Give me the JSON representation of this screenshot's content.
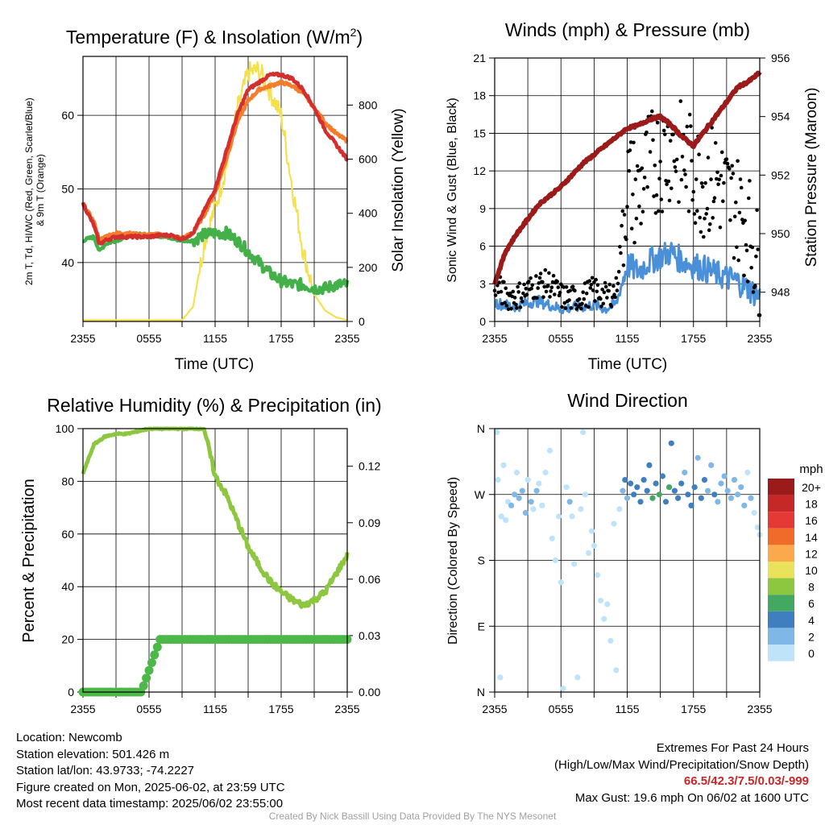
{
  "chart_data": [
    {
      "type": "line",
      "title": "Temperature (F) & Insolation (W/m²)",
      "title_main": "Temperature (F) & Insolation (W/m",
      "title_sup": "2",
      "title_end": ")",
      "xlabel": "Time (UTC)",
      "ylabel_line1": "2m T, Td, HI/WC (Red, Green, Scarlet/Blue)",
      "ylabel_line2": "& 9m T (Orange)",
      "ylabel_right": "Solar Insolation (Yellow)",
      "x_ticks": [
        "2355",
        "0555",
        "1155",
        "1755",
        "2355"
      ],
      "ylim": [
        32,
        68
      ],
      "y_ticks": [
        40,
        50,
        60
      ],
      "ylim_right": [
        0,
        980
      ],
      "y_ticks_right": [
        0,
        200,
        400,
        600,
        800
      ],
      "hours": [
        0,
        1,
        1.5,
        2,
        3,
        4,
        5,
        6,
        7,
        8,
        9,
        10,
        11,
        12,
        13,
        14,
        15,
        16,
        17,
        18,
        19,
        20,
        21,
        22,
        23,
        24
      ],
      "series": [
        {
          "name": "2m T",
          "color": "#d32f2f",
          "values": [
            48,
            45,
            42.5,
            43,
            43.5,
            43.5,
            43.5,
            43.5,
            43.7,
            43.7,
            43.2,
            44,
            47,
            50,
            55,
            60,
            63.5,
            64.5,
            65.5,
            65.5,
            65,
            63.5,
            61,
            58,
            56,
            54
          ]
        },
        {
          "name": "9m T",
          "color": "#f57c2a",
          "values": [
            48,
            45.5,
            43,
            43.5,
            44,
            44,
            43.8,
            43.8,
            43.8,
            43.6,
            43.3,
            44,
            46.5,
            49.5,
            54,
            59,
            62,
            63.5,
            64,
            64.5,
            64,
            63,
            61,
            59,
            57.5,
            56.5
          ]
        },
        {
          "name": "Td",
          "color": "#43b04a",
          "values": [
            43,
            43.5,
            41.5,
            42.5,
            43,
            43.5,
            43.8,
            43.8,
            43.6,
            43.3,
            43,
            43,
            43.8,
            44,
            44,
            43,
            41.5,
            40,
            38.5,
            37.5,
            37,
            37,
            36.5,
            36.5,
            37,
            37
          ]
        },
        {
          "name": "Solar Insolation",
          "color": "#f5e050",
          "axis": "right",
          "values": [
            5,
            5,
            5,
            5,
            5,
            5,
            5,
            5,
            5,
            5,
            5,
            55,
            290,
            420,
            570,
            780,
            920,
            930,
            850,
            760,
            500,
            260,
            100,
            40,
            15,
            5
          ]
        }
      ]
    },
    {
      "type": "line",
      "title": "Winds (mph) & Pressure (mb)",
      "xlabel": "Time (UTC)",
      "ylabel": "Sonic Wind & Gust (Blue, Black)",
      "ylabel_right": "Station Pressure (Maroon)",
      "x_ticks": [
        "2355",
        "0555",
        "1155",
        "1755",
        "2355"
      ],
      "ylim": [
        0,
        21
      ],
      "y_ticks": [
        0,
        3,
        6,
        9,
        12,
        15,
        18,
        21
      ],
      "ylim_right": [
        947.0,
        956.0
      ],
      "y_ticks_right": [
        948,
        950,
        952,
        954,
        956
      ],
      "hours": [
        0,
        1,
        2,
        3,
        4,
        5,
        6,
        7,
        8,
        9,
        10,
        11,
        12,
        13,
        14,
        15,
        16,
        17,
        18,
        19,
        20,
        21,
        22,
        23,
        24
      ],
      "series": [
        {
          "name": "Sonic Wind",
          "color": "#4a90d9",
          "values": [
            1.5,
            1.3,
            1.2,
            1.5,
            1.6,
            1.3,
            1.0,
            1.1,
            1.2,
            1.3,
            1.0,
            1.4,
            4.5,
            4.0,
            4.8,
            5.2,
            5.5,
            4.8,
            4.5,
            4.2,
            3.8,
            3.5,
            3.2,
            2.6,
            2.0
          ]
        },
        {
          "name": "Gust",
          "color": "#000000",
          "values": [
            3.0,
            2.0,
            2.0,
            2.5,
            3.0,
            3.0,
            2.0,
            1.8,
            2.0,
            2.5,
            2.0,
            2.5,
            11.0,
            10.0,
            12.5,
            13.0,
            14.0,
            13.0,
            12.0,
            11.0,
            11.5,
            10.0,
            9.0,
            7.5,
            4.0
          ]
        },
        {
          "name": "Station Pressure",
          "color": "#9b1b1b",
          "axis": "right",
          "values": [
            948.3,
            949.4,
            950.0,
            950.5,
            951.0,
            951.3,
            951.6,
            952.0,
            952.4,
            952.7,
            953.0,
            953.3,
            953.6,
            953.7,
            953.9,
            954.0,
            953.7,
            953.3,
            953.0,
            953.5,
            954.0,
            954.5,
            955.0,
            955.2,
            955.5
          ]
        }
      ]
    },
    {
      "type": "line",
      "title": "Relative Humidity (%) & Precipitation (in)",
      "ylabel": "Percent & Precipitation",
      "x_ticks": [
        "2355",
        "0555",
        "1155",
        "1755",
        "2355"
      ],
      "ylim": [
        0,
        100
      ],
      "y_ticks": [
        0,
        20,
        40,
        60,
        80,
        100
      ],
      "ylim_right": [
        0,
        0.14
      ],
      "y_ticks_right": [
        "0.00",
        "0.03",
        "0.06",
        "0.09",
        "0.12"
      ],
      "hours": [
        0,
        1,
        2,
        3,
        4,
        5,
        6,
        7,
        8,
        9,
        10,
        11,
        12,
        13,
        14,
        15,
        16,
        17,
        18,
        19,
        20,
        21,
        22,
        23,
        24
      ],
      "series": [
        {
          "name": "Relative Humidity",
          "color": "#8dc63f",
          "values": [
            83,
            94,
            97,
            98,
            98,
            99,
            100,
            100,
            100,
            100,
            100,
            100,
            82,
            75,
            65,
            55,
            48,
            42,
            38,
            35,
            33,
            35,
            38,
            45,
            52
          ]
        },
        {
          "name": "Precipitation",
          "color": "#4cb848",
          "axis": "right",
          "values": [
            0,
            0,
            0,
            0,
            0,
            0,
            0.002,
            0.028,
            0.028,
            0.028,
            0.028,
            0.028,
            0.028,
            0.028,
            0.028,
            0.028,
            0.028,
            0.028,
            0.028,
            0.028,
            0.028,
            0.028,
            0.028,
            0.028,
            0.028
          ]
        }
      ]
    },
    {
      "type": "scatter",
      "title": "Wind Direction",
      "ylabel": "Direction (Colored By Speed)",
      "x_ticks": [
        "2355",
        "0555",
        "1155",
        "1755",
        "2355"
      ],
      "y_ticks": [
        "N",
        "E",
        "S",
        "W",
        "N"
      ],
      "ylim": [
        0,
        360
      ],
      "legend_title": "mph",
      "legend_labels": [
        "20+",
        "18",
        "16",
        "14",
        "12",
        "10",
        "8",
        "6",
        "4",
        "2",
        "0"
      ],
      "legend_colors": [
        "#9b1b1b",
        "#c62828",
        "#e53935",
        "#f06a2a",
        "#fba94c",
        "#e9e25a",
        "#8dc63f",
        "#43a862",
        "#3f7fc0",
        "#7fb8e6",
        "#bfe3f8"
      ],
      "points": [
        {
          "h": 0.2,
          "dir": 355,
          "mph": 0.8
        },
        {
          "h": 0.3,
          "dir": 290,
          "mph": 1.0
        },
        {
          "h": 0.5,
          "dir": 20,
          "mph": 0.5
        },
        {
          "h": 0.6,
          "dir": 240,
          "mph": 1.2
        },
        {
          "h": 0.8,
          "dir": 310,
          "mph": 1.0
        },
        {
          "h": 1.0,
          "dir": 235,
          "mph": 1.5
        },
        {
          "h": 1.2,
          "dir": 260,
          "mph": 1.5
        },
        {
          "h": 1.5,
          "dir": 255,
          "mph": 2.5
        },
        {
          "h": 1.8,
          "dir": 270,
          "mph": 2.0
        },
        {
          "h": 2.0,
          "dir": 300,
          "mph": 1.0
        },
        {
          "h": 2.2,
          "dir": 265,
          "mph": 3.0
        },
        {
          "h": 2.5,
          "dir": 275,
          "mph": 2.5
        },
        {
          "h": 2.8,
          "dir": 245,
          "mph": 2.0
        },
        {
          "h": 3.0,
          "dir": 290,
          "mph": 1.5
        },
        {
          "h": 3.3,
          "dir": 260,
          "mph": 2.5
        },
        {
          "h": 3.5,
          "dir": 250,
          "mph": 1.8
        },
        {
          "h": 3.8,
          "dir": 275,
          "mph": 2.8
        },
        {
          "h": 4.0,
          "dir": 285,
          "mph": 1.5
        },
        {
          "h": 4.3,
          "dir": 255,
          "mph": 1.2
        },
        {
          "h": 4.6,
          "dir": 300,
          "mph": 1.0
        },
        {
          "h": 5.0,
          "dir": 330,
          "mph": 0.8
        },
        {
          "h": 5.2,
          "dir": 210,
          "mph": 1.0
        },
        {
          "h": 5.5,
          "dir": 180,
          "mph": 1.2
        },
        {
          "h": 5.8,
          "dir": 240,
          "mph": 1.5
        },
        {
          "h": 6.0,
          "dir": 150,
          "mph": 0.8
        },
        {
          "h": 6.2,
          "dir": 5,
          "mph": 0.5
        },
        {
          "h": 6.5,
          "dir": 280,
          "mph": 1.2
        },
        {
          "h": 6.8,
          "dir": 260,
          "mph": 2.0
        },
        {
          "h": 7.0,
          "dir": 240,
          "mph": 1.5
        },
        {
          "h": 7.2,
          "dir": 175,
          "mph": 1.0
        },
        {
          "h": 7.5,
          "dir": 20,
          "mph": 0.8
        },
        {
          "h": 7.8,
          "dir": 250,
          "mph": 1.2
        },
        {
          "h": 8.0,
          "dir": 355,
          "mph": 0.5
        },
        {
          "h": 8.2,
          "dir": 270,
          "mph": 1.5
        },
        {
          "h": 8.5,
          "dir": 190,
          "mph": 1.0
        },
        {
          "h": 8.8,
          "dir": 220,
          "mph": 1.2
        },
        {
          "h": 9.0,
          "dir": 200,
          "mph": 1.0
        },
        {
          "h": 9.3,
          "dir": 160,
          "mph": 0.8
        },
        {
          "h": 9.6,
          "dir": 125,
          "mph": 1.2
        },
        {
          "h": 9.9,
          "dir": 100,
          "mph": 0.8
        },
        {
          "h": 10.2,
          "dir": 120,
          "mph": 1.0
        },
        {
          "h": 10.5,
          "dir": 70,
          "mph": 0.8
        },
        {
          "h": 10.8,
          "dir": 230,
          "mph": 1.2
        },
        {
          "h": 11.0,
          "dir": 30,
          "mph": 0.5
        },
        {
          "h": 11.3,
          "dir": 250,
          "mph": 1.5
        },
        {
          "h": 11.6,
          "dir": 275,
          "mph": 2.5
        },
        {
          "h": 11.8,
          "dir": 290,
          "mph": 4.0
        },
        {
          "h": 12.0,
          "dir": 265,
          "mph": 3.5
        },
        {
          "h": 12.3,
          "dir": 285,
          "mph": 4.5
        },
        {
          "h": 12.6,
          "dir": 270,
          "mph": 4.0
        },
        {
          "h": 12.9,
          "dir": 280,
          "mph": 5.0
        },
        {
          "h": 13.2,
          "dir": 260,
          "mph": 4.5
        },
        {
          "h": 13.5,
          "dir": 290,
          "mph": 4.0
        },
        {
          "h": 13.8,
          "dir": 275,
          "mph": 5.5
        },
        {
          "h": 14.0,
          "dir": 310,
          "mph": 4.0
        },
        {
          "h": 14.3,
          "dir": 265,
          "mph": 6.5
        },
        {
          "h": 14.6,
          "dir": 285,
          "mph": 5.0
        },
        {
          "h": 14.9,
          "dir": 270,
          "mph": 6.0
        },
        {
          "h": 15.2,
          "dir": 295,
          "mph": 4.5
        },
        {
          "h": 15.5,
          "dir": 260,
          "mph": 5.5
        },
        {
          "h": 15.8,
          "dir": 280,
          "mph": 6.0
        },
        {
          "h": 16.0,
          "dir": 340,
          "mph": 4.0
        },
        {
          "h": 16.3,
          "dir": 275,
          "mph": 5.0
        },
        {
          "h": 16.6,
          "dir": 265,
          "mph": 4.5
        },
        {
          "h": 16.9,
          "dir": 285,
          "mph": 4.0
        },
        {
          "h": 17.2,
          "dir": 300,
          "mph": 3.5
        },
        {
          "h": 17.5,
          "dir": 270,
          "mph": 4.5
        },
        {
          "h": 17.8,
          "dir": 255,
          "mph": 4.0
        },
        {
          "h": 18.1,
          "dir": 280,
          "mph": 5.0
        },
        {
          "h": 18.4,
          "dir": 320,
          "mph": 3.5
        },
        {
          "h": 18.7,
          "dir": 265,
          "mph": 4.0
        },
        {
          "h": 19.0,
          "dir": 290,
          "mph": 4.5
        },
        {
          "h": 19.3,
          "dir": 275,
          "mph": 3.5
        },
        {
          "h": 19.6,
          "dir": 310,
          "mph": 3.0
        },
        {
          "h": 19.9,
          "dir": 270,
          "mph": 4.0
        },
        {
          "h": 20.2,
          "dir": 260,
          "mph": 3.5
        },
        {
          "h": 20.5,
          "dir": 285,
          "mph": 3.0
        },
        {
          "h": 20.8,
          "dir": 295,
          "mph": 2.5
        },
        {
          "h": 21.1,
          "dir": 275,
          "mph": 3.5
        },
        {
          "h": 21.4,
          "dir": 265,
          "mph": 3.0
        },
        {
          "h": 21.7,
          "dir": 290,
          "mph": 2.5
        },
        {
          "h": 22.0,
          "dir": 270,
          "mph": 3.0
        },
        {
          "h": 22.3,
          "dir": 280,
          "mph": 2.0
        },
        {
          "h": 22.6,
          "dir": 255,
          "mph": 2.5
        },
        {
          "h": 22.9,
          "dir": 300,
          "mph": 1.5
        },
        {
          "h": 23.2,
          "dir": 265,
          "mph": 2.0
        },
        {
          "h": 23.5,
          "dir": 245,
          "mph": 1.5
        },
        {
          "h": 23.8,
          "dir": 225,
          "mph": 1.0
        },
        {
          "h": 24.0,
          "dir": 215,
          "mph": 1.0
        }
      ]
    }
  ],
  "info": {
    "location": "Location: Newcomb",
    "elevation": "Station elevation: 501.426 m",
    "latlon": "Station lat/lon: 43.9733; -74.2227",
    "created": "Figure created on Mon, 2025-06-02, at 23:59 UTC",
    "recent": "Most recent data timestamp: 2025/06/02 23:55:00"
  },
  "extremes": {
    "title": "Extremes For Past 24 Hours",
    "subtitle": "(High/Low/Max Wind/Precipitation/Snow Depth)",
    "values": "66.5/42.3/7.5/0.03/-999",
    "max_gust": "Max Gust: 19.6 mph On 06/02 at 1600 UTC"
  },
  "credit": "Created By Nick Bassill Using Data Provided By The NYS Mesonet"
}
